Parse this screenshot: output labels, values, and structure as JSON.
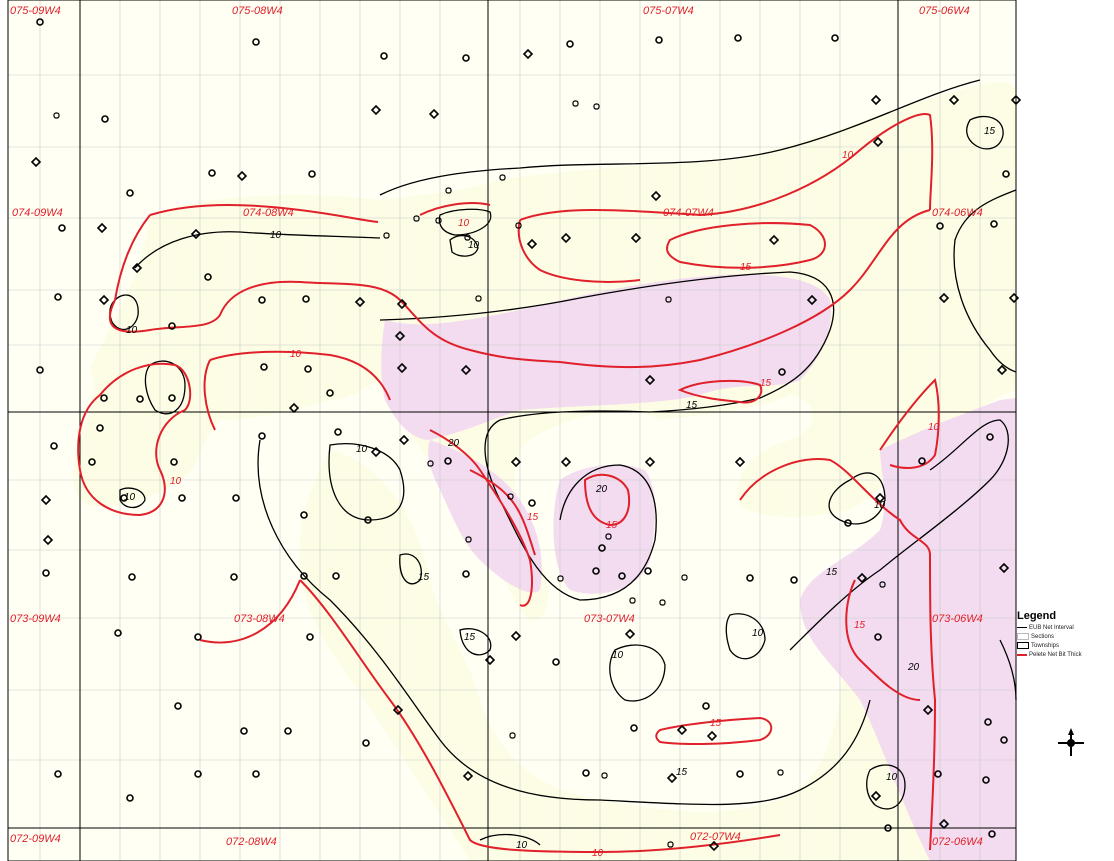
{
  "map": {
    "township_labels": [
      {
        "id": "075-09W4",
        "text": "075-09W4"
      },
      {
        "id": "075-08W4",
        "text": "075-08W4"
      },
      {
        "id": "075-07W4",
        "text": "075-07W4"
      },
      {
        "id": "075-06W4",
        "text": "075-06W4"
      },
      {
        "id": "074-09W4",
        "text": "074-09W4"
      },
      {
        "id": "074-08W4",
        "text": "074-08W4"
      },
      {
        "id": "074-07W4",
        "text": "074-07W4"
      },
      {
        "id": "074-06W4",
        "text": "074-06W4"
      },
      {
        "id": "073-09W4",
        "text": "073-09W4"
      },
      {
        "id": "073-08W4",
        "text": "073-08W4"
      },
      {
        "id": "073-07W4",
        "text": "073-07W4"
      },
      {
        "id": "073-06W4",
        "text": "073-06W4"
      },
      {
        "id": "072-09W4",
        "text": "072-09W4"
      },
      {
        "id": "072-08W4",
        "text": "072-08W4"
      },
      {
        "id": "072-07W4",
        "text": "072-07W4"
      },
      {
        "id": "072-06W4",
        "text": "072-06W4"
      }
    ],
    "contour_labels": {
      "ten": "10",
      "fifteen": "15",
      "twenty": "20"
    },
    "colors": {
      "eub_contour": "#000000",
      "pelete_contour": "#e0202a",
      "fill_low": "#fdfde6",
      "fill_high": "#f3dcef",
      "section_grid": "#c9c9c9",
      "township_line": "#000000"
    }
  },
  "legend": {
    "title": "Legend",
    "items": [
      {
        "label": "EUB Net Interval",
        "symbol": "line-black"
      },
      {
        "label": "Sections",
        "symbol": "box-grey"
      },
      {
        "label": "Townships",
        "symbol": "box-black"
      },
      {
        "label": "Pelete Net Bit Thick",
        "symbol": "line-red"
      }
    ]
  },
  "north_arrow_icon": "compass-rose-icon"
}
